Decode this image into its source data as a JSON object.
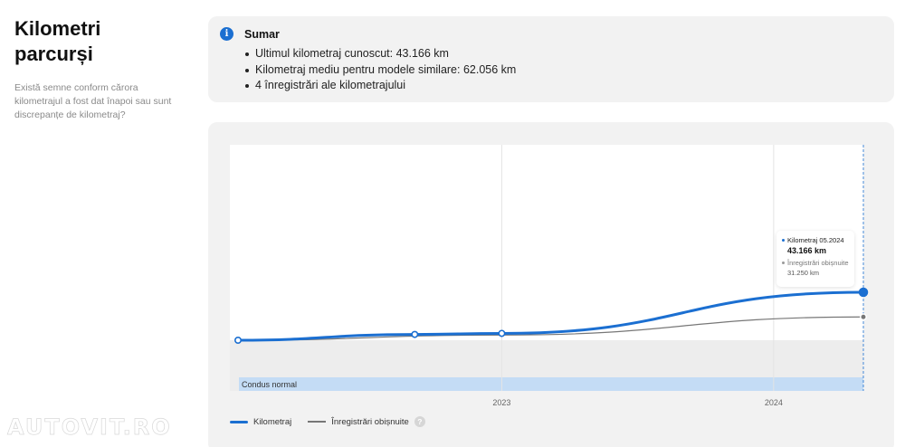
{
  "section": {
    "title": "Kilometri parcurși",
    "description": "Există semne conform cărora kilometrajul a fost dat înapoi sau sunt discrepanțe de kilometraj?"
  },
  "summary": {
    "icon": "info-icon",
    "title": "Sumar",
    "items": [
      "Ultimul kilometraj cunoscut: 43.166 km",
      "Kilometraj mediu pentru modele similare: 62.056 km",
      "4 înregistrări ale kilometrajului"
    ]
  },
  "chart_data": {
    "type": "line",
    "x_ticks": [
      "2023",
      "2024"
    ],
    "band_label": "Condus normal",
    "series": [
      {
        "name": "Kilometraj",
        "color": "#1b6fd1",
        "points": [
          {
            "t": 2022.03,
            "km": 20000
          },
          {
            "t": 2022.68,
            "km": 22800
          },
          {
            "t": 2023.0,
            "km": 23300
          },
          {
            "t": 2024.33,
            "km": 43166
          }
        ]
      },
      {
        "name": "Înregistrări obișnuite",
        "color": "#777777",
        "points": [
          {
            "t": 2022.03,
            "km": 20000
          },
          {
            "t": 2023.0,
            "km": 22500
          },
          {
            "t": 2024.33,
            "km": 31250
          }
        ]
      }
    ],
    "y_range": [
      0,
      60000
    ],
    "x_range": [
      2022.0,
      2024.33
    ],
    "grid": true,
    "legend_position": "bottom-left"
  },
  "tooltip": {
    "label1": "Kilometraj 05.2024",
    "value1": "43.166 km",
    "label2": "Înregistrări obișnuite",
    "value2": "31.250 km"
  },
  "legend": {
    "item1": "Kilometraj",
    "item2": "Înregistrări obișnuite",
    "help": "?"
  },
  "watermark": "AUTOVIT.RO",
  "colors": {
    "accent": "#1b6fd1",
    "band": "#c4dcf5"
  }
}
